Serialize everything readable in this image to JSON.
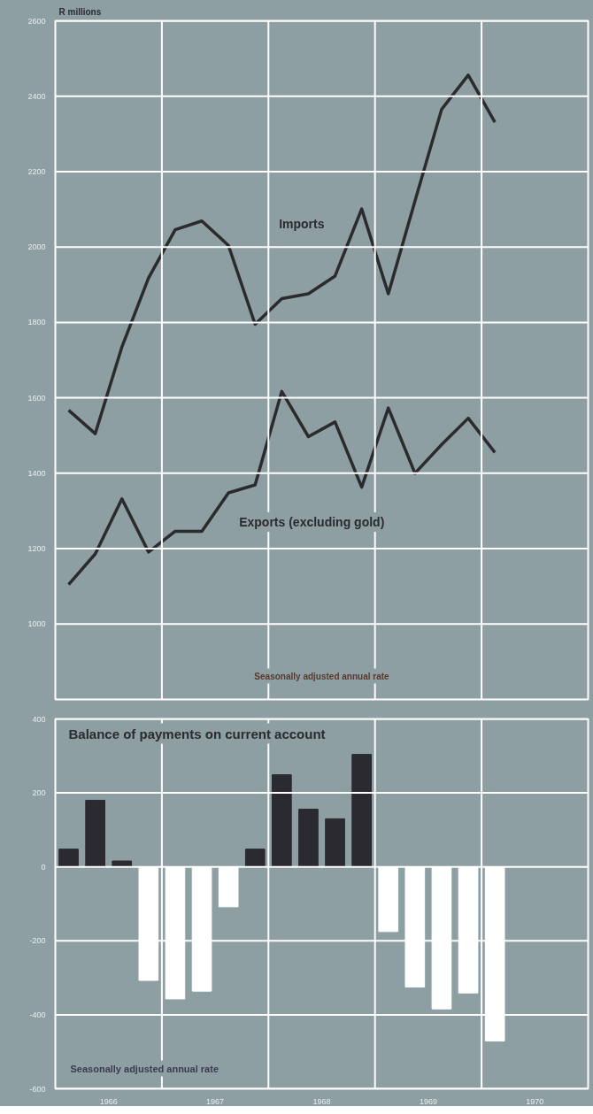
{
  "chart_data": [
    {
      "type": "line",
      "ylabel": "R millions",
      "annotations": [
        "Seasonally adjusted annual rate"
      ],
      "x": [
        1966.125,
        1966.375,
        1966.625,
        1966.875,
        1967.125,
        1967.375,
        1967.625,
        1967.875,
        1968.125,
        1968.375,
        1968.625,
        1968.875,
        1969.125,
        1969.375,
        1969.625,
        1969.875,
        1970.125
      ],
      "series": [
        {
          "name": "Imports",
          "color": "#2b2b2e",
          "values": [
            1567,
            1505,
            1735,
            1918,
            2046,
            2069,
            2004,
            1795,
            1863,
            1876,
            1923,
            2101,
            1876,
            2122,
            2365,
            2456,
            2331
          ]
        },
        {
          "name": "Exports (excluding gold)",
          "color": "#2b2b2e",
          "values": [
            1105,
            1186,
            1332,
            1191,
            1246,
            1246,
            1348,
            1369,
            1617,
            1497,
            1536,
            1363,
            1573,
            1400,
            1476,
            1546,
            1455
          ]
        }
      ],
      "xlim": [
        1966,
        1971
      ],
      "xticks": [
        {
          "value": 1967,
          "label": null
        },
        {
          "value": 1968,
          "label": null
        },
        {
          "value": 1969,
          "label": null
        },
        {
          "value": 1970,
          "label": null
        }
      ],
      "ylim": [
        800,
        2600
      ],
      "yticks": [
        1000,
        1200,
        1400,
        1600,
        1800,
        2000,
        2200,
        2400,
        2600
      ],
      "grid": true,
      "tick_labels": "y",
      "line_style": "solid",
      "marker": "none"
    },
    {
      "type": "bar",
      "title": "Balance of payments on current account",
      "annotations": [
        "Seasonally adjusted annual rate"
      ],
      "x": [
        1966.125,
        1966.375,
        1966.625,
        1966.875,
        1967.125,
        1967.375,
        1967.625,
        1967.875,
        1968.125,
        1968.375,
        1968.625,
        1968.875,
        1969.125,
        1969.375,
        1969.625,
        1969.875,
        1970.125
      ],
      "values": [
        48,
        180,
        16,
        -307,
        -357,
        -336,
        -108,
        48,
        249,
        156,
        130,
        304,
        -175,
        -325,
        -384,
        -341,
        -471
      ],
      "colors": [
        "#2a2a30",
        "#2a2a30",
        "#2a2a30",
        "#ffffff",
        "#ffffff",
        "#ffffff",
        "#ffffff",
        "#2a2a30",
        "#2a2a30",
        "#2a2a30",
        "#2a2a30",
        "#2a2a30",
        "#ffffff",
        "#ffffff",
        "#ffffff",
        "#ffffff",
        "#ffffff"
      ],
      "xlim": [
        1966,
        1971
      ],
      "xticks": [
        {
          "value": 1966.5,
          "label": "1966"
        },
        {
          "value": 1967,
          "label": null
        },
        {
          "value": 1967.5,
          "label": "1967"
        },
        {
          "value": 1968,
          "label": null
        },
        {
          "value": 1968.5,
          "label": "1968"
        },
        {
          "value": 1969,
          "label": null
        },
        {
          "value": 1969.5,
          "label": "1969"
        },
        {
          "value": 1970,
          "label": null
        },
        {
          "value": 1970.5,
          "label": "1970"
        }
      ],
      "ylim": [
        -600,
        400
      ],
      "yticks": [
        -600,
        -400,
        -200,
        0,
        200,
        400
      ],
      "grid": true
    }
  ]
}
